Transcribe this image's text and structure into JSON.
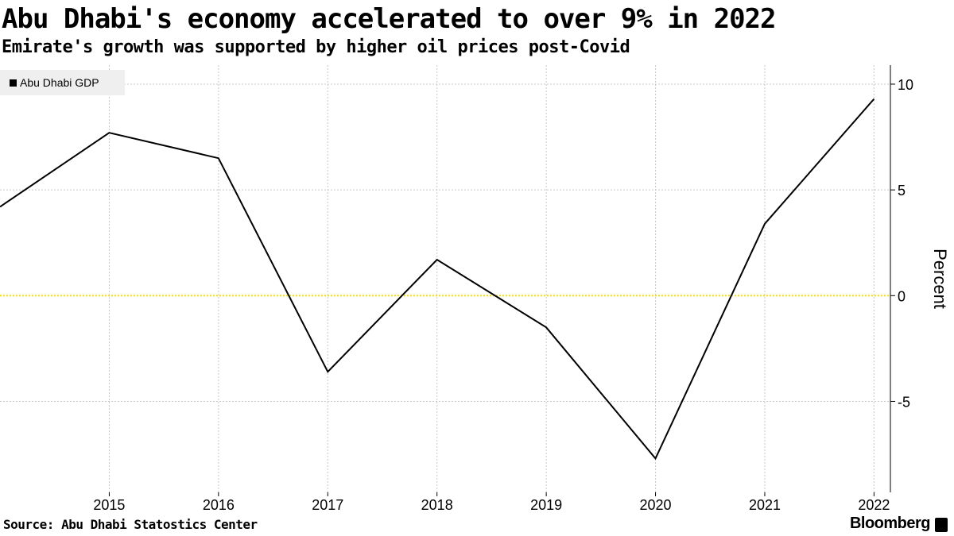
{
  "header": {
    "title": "Abu Dhabi's economy accelerated to over 9% in 2022",
    "subtitle": "Emirate's growth was supported by higher oil prices post-Covid"
  },
  "footer": {
    "source": "Source: Abu Dhabi Statostics Center",
    "brand": "Bloomberg",
    "brand_icon": "bloomberg-chart-icon"
  },
  "colors": {
    "line": "#000000",
    "zero_line": "#f2e000",
    "grid": "#c8c8c8",
    "legend_bg": "#efefef"
  },
  "chart_data": {
    "type": "line",
    "title": "Abu Dhabi's economy accelerated to over 9% in 2022",
    "subtitle": "Emirate's growth was supported by higher oil prices post-Covid",
    "ylabel": "Percent",
    "xlabel": "",
    "x": [
      2014,
      2015,
      2016,
      2017,
      2018,
      2019,
      2020,
      2021,
      2022
    ],
    "xticks": [
      "2015",
      "2016",
      "2017",
      "2018",
      "2019",
      "2020",
      "2021",
      "2022"
    ],
    "yticks": [
      "10",
      "5",
      "0",
      "-5"
    ],
    "ylim": [
      -9.3,
      10.9
    ],
    "xlim": [
      2014,
      2022.15
    ],
    "y_axis_side": "right",
    "grid": true,
    "legend_position": "top-left",
    "series": [
      {
        "name": "Abu Dhabi GDP",
        "values": [
          4.2,
          7.7,
          6.5,
          -3.6,
          1.7,
          -1.5,
          -7.7,
          3.4,
          9.3
        ]
      }
    ]
  }
}
